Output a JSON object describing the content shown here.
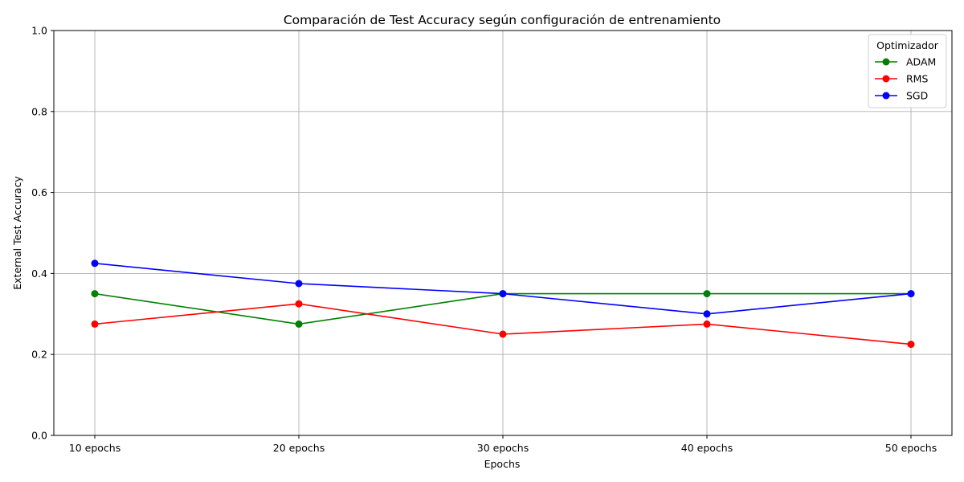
{
  "chart_data": {
    "type": "line",
    "title": "Comparación de Test Accuracy según configuración de entrenamiento",
    "xlabel": "Epochs",
    "ylabel": "External Test Accuracy",
    "categories": [
      "10 epochs",
      "20 epochs",
      "30 epochs",
      "40 epochs",
      "50 epochs"
    ],
    "ylim": [
      0,
      1
    ],
    "yticks": [
      "0.0",
      "0.2",
      "0.4",
      "0.6",
      "0.8",
      "1.0"
    ],
    "grid": true,
    "legend": {
      "title": "Optimizador",
      "placement": "top-right"
    },
    "series": [
      {
        "name": "ADAM",
        "color": "#008000",
        "values": [
          0.35,
          0.275,
          0.35,
          0.35,
          0.35
        ]
      },
      {
        "name": "RMS",
        "color": "#ff0000",
        "values": [
          0.275,
          0.325,
          0.25,
          0.275,
          0.225
        ]
      },
      {
        "name": "SGD",
        "color": "#0000ff",
        "values": [
          0.425,
          0.375,
          0.35,
          0.3,
          0.35
        ]
      }
    ]
  }
}
